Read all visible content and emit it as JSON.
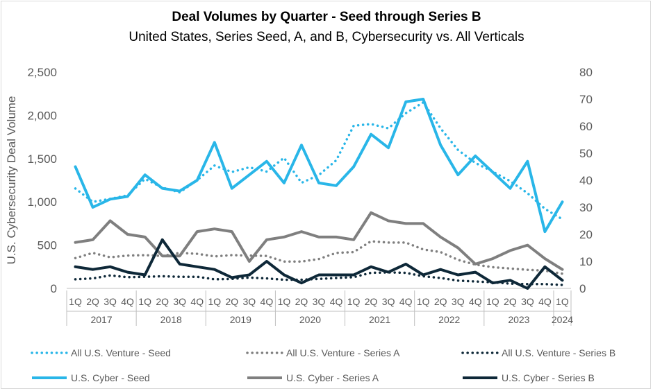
{
  "chart_data": {
    "type": "line",
    "title": "Deal Volumes by Quarter - Seed through Series B",
    "subtitle": "United States, Series Seed, A, and B, Cybersecurity vs. All Verticals",
    "ylabel": "U.S. Cybersecurity Deal Volume",
    "y2label": "",
    "ylim": [
      0,
      2500
    ],
    "yticks": [
      "0",
      "500",
      "1,000",
      "1,500",
      "2,000",
      "2,500"
    ],
    "y2lim": [
      0,
      80
    ],
    "y2ticks": [
      "0",
      "10",
      "20",
      "30",
      "40",
      "50",
      "60",
      "70",
      "80"
    ],
    "quarters": [
      "1Q",
      "2Q",
      "3Q",
      "4Q",
      "1Q",
      "2Q",
      "3Q",
      "4Q",
      "1Q",
      "2Q",
      "3Q",
      "4Q",
      "1Q",
      "2Q",
      "3Q",
      "4Q",
      "1Q",
      "2Q",
      "3Q",
      "4Q",
      "1Q",
      "2Q",
      "3Q",
      "4Q",
      "1Q",
      "2Q",
      "3Q",
      "4Q",
      "1Q"
    ],
    "years": [
      "2017",
      "2018",
      "2019",
      "2020",
      "2021",
      "2022",
      "2023",
      "2024"
    ],
    "grid": false,
    "legend_position": "bottom",
    "series": [
      {
        "name": "All U.S. Venture - Seed",
        "axis": "left",
        "style": "dotted",
        "color": "#29b6e8",
        "values": [
          1155,
          1000,
          1035,
          1075,
          1265,
          1165,
          1110,
          1250,
          1420,
          1345,
          1400,
          1350,
          1510,
          1220,
          1310,
          1480,
          1880,
          1900,
          1850,
          2025,
          2150,
          1850,
          1600,
          1450,
          1350,
          1240,
          1100,
          920,
          800
        ]
      },
      {
        "name": "All U.S. Venture - Series A",
        "axis": "left",
        "style": "dotted",
        "color": "#7f7f7f",
        "values": [
          350,
          410,
          360,
          380,
          385,
          375,
          410,
          400,
          370,
          385,
          380,
          375,
          310,
          310,
          340,
          410,
          420,
          545,
          530,
          530,
          450,
          420,
          330,
          275,
          245,
          230,
          215,
          205,
          170
        ]
      },
      {
        "name": "All U.S. Venture - Series B",
        "axis": "left",
        "style": "dotted",
        "color": "#0e2838",
        "values": [
          105,
          115,
          150,
          130,
          135,
          140,
          135,
          135,
          105,
          110,
          125,
          115,
          100,
          100,
          110,
          120,
          130,
          180,
          185,
          180,
          140,
          120,
          90,
          80,
          70,
          55,
          50,
          50,
          40
        ]
      },
      {
        "name": "U.S. Cyber - Seed",
        "axis": "right",
        "style": "solid",
        "color": "#29b6e8",
        "values": [
          45,
          30,
          33,
          34,
          42,
          37,
          36,
          40,
          54,
          37,
          42,
          47,
          39,
          53,
          39,
          38,
          45,
          57,
          52,
          69,
          70,
          53,
          42,
          49,
          43,
          37,
          47,
          21,
          32
        ]
      },
      {
        "name": "U.S. Cyber - Series A",
        "axis": "right",
        "style": "solid",
        "color": "#7f7f7f",
        "values": [
          17,
          18,
          25,
          20,
          19,
          12,
          12,
          21,
          22,
          21,
          10,
          18,
          19,
          21,
          19,
          19,
          18,
          28,
          25,
          24,
          24,
          19,
          15,
          9,
          11,
          14,
          16,
          11,
          7
        ]
      },
      {
        "name": "U.S. Cyber - Series B",
        "axis": "right",
        "style": "solid",
        "color": "#0e2838",
        "values": [
          8,
          7,
          8,
          6,
          5,
          18,
          9,
          8,
          7,
          4,
          5,
          10,
          5,
          2,
          5,
          5,
          5,
          8,
          6,
          9,
          5,
          7,
          5,
          6,
          2,
          3,
          0,
          8,
          3
        ]
      }
    ]
  }
}
